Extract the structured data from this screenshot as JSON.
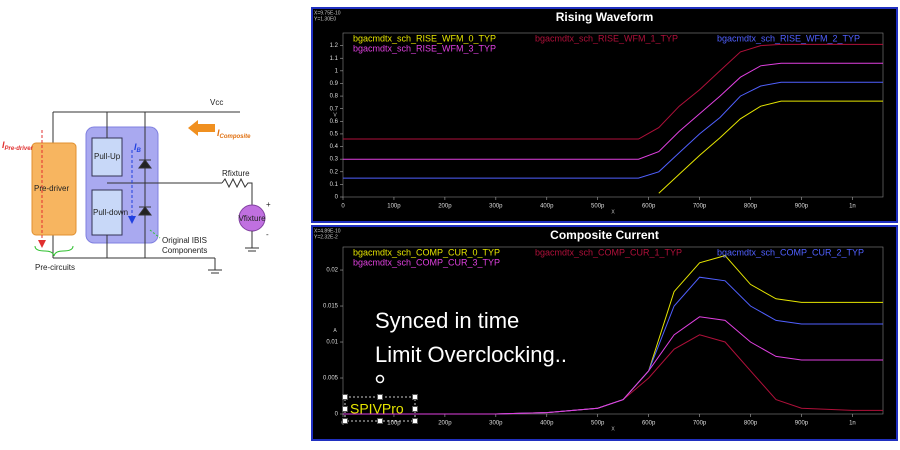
{
  "diagram": {
    "vcc": "Vcc",
    "i_composite": {
      "symbol": "I",
      "sub": "Composite"
    },
    "i_predriver": {
      "symbol": "I",
      "sub": "Pre-driver"
    },
    "i_b": {
      "symbol": "I",
      "sub": "B"
    },
    "predriver": "Pre-driver",
    "pullup": "Pull-Up",
    "pulldown": "Pull-down",
    "rfixture": "Rfixture",
    "vfixture": "Vfixture",
    "plus": "+",
    "minus": "-",
    "ibis": [
      "Original IBIS",
      "Components"
    ],
    "precircuits": "Pre-circuits"
  },
  "annotations": {
    "synced": "Synced in time",
    "overclock": "Limit Overclocking..",
    "textbox": "SPIVPro"
  },
  "chart_data": [
    {
      "type": "line",
      "title": "Rising Waveform",
      "cursor": [
        "X=9.75E-10",
        "Y=1.30E0"
      ],
      "ylabel": "V",
      "xlabel": "X",
      "x": [
        0,
        100,
        200,
        300,
        400,
        500,
        580,
        620,
        660,
        700,
        740,
        780,
        820,
        860,
        900,
        1000,
        1060
      ],
      "xlim": [
        0,
        1060
      ],
      "xticks": [
        0,
        {
          "value": 100,
          "label": "100p"
        },
        {
          "value": 200,
          "label": "200p"
        },
        {
          "value": 300,
          "label": "300p"
        },
        {
          "value": 400,
          "label": "400p"
        },
        {
          "value": 500,
          "label": "500p"
        },
        {
          "value": 600,
          "label": "600p"
        },
        {
          "value": 700,
          "label": "700p"
        },
        {
          "value": 800,
          "label": "800p"
        },
        {
          "value": 900,
          "label": "900p"
        },
        {
          "value": 1000,
          "label": "1n"
        }
      ],
      "ylim": [
        0,
        1.3
      ],
      "yticks": [
        0,
        0.1,
        0.2,
        0.3,
        0.4,
        0.5,
        0.6,
        0.7,
        0.8,
        0.9,
        1,
        1.1,
        1.2
      ],
      "series": [
        {
          "name": "bgacmdtx_sch_RISE_WFM_0_TYP",
          "color": "#e6e600",
          "values": [
            null,
            null,
            null,
            null,
            null,
            null,
            null,
            0.03,
            0.18,
            0.33,
            0.47,
            0.62,
            0.72,
            0.76,
            0.76,
            0.76,
            0.76
          ]
        },
        {
          "name": "bgacmdtx_sch_RISE_WFM_1_TYP",
          "color": "#b0103a",
          "values": [
            0.46,
            0.46,
            0.46,
            0.46,
            0.46,
            0.46,
            0.46,
            0.55,
            0.72,
            0.85,
            1.0,
            1.15,
            1.2,
            1.21,
            1.21,
            1.21,
            1.21
          ]
        },
        {
          "name": "bgacmdtx_sch_RISE_WFM_2_TYP",
          "color": "#5060ff",
          "values": [
            0.15,
            0.15,
            0.15,
            0.15,
            0.15,
            0.15,
            0.15,
            0.2,
            0.35,
            0.5,
            0.63,
            0.8,
            0.88,
            0.91,
            0.91,
            0.91,
            0.91
          ]
        },
        {
          "name": "bgacmdtx_sch_RISE_WFM_3_TYP",
          "color": "#e040e0",
          "values": [
            0.3,
            0.3,
            0.3,
            0.3,
            0.3,
            0.3,
            0.3,
            0.36,
            0.52,
            0.66,
            0.8,
            0.95,
            1.04,
            1.06,
            1.06,
            1.06,
            1.06
          ]
        }
      ]
    },
    {
      "type": "line",
      "title": "Composite Current",
      "cursor": [
        "X=4.89E-10",
        "Y=2.32E-2"
      ],
      "ylabel": "A",
      "xlabel": "X",
      "x": [
        0,
        100,
        200,
        300,
        400,
        500,
        550,
        600,
        650,
        700,
        750,
        800,
        850,
        900,
        1000,
        1060
      ],
      "xlim": [
        0,
        1060
      ],
      "xticks": [
        0,
        {
          "value": 100,
          "label": "100p"
        },
        {
          "value": 200,
          "label": "200p"
        },
        {
          "value": 300,
          "label": "300p"
        },
        {
          "value": 400,
          "label": "400p"
        },
        {
          "value": 500,
          "label": "500p"
        },
        {
          "value": 600,
          "label": "600p"
        },
        {
          "value": 700,
          "label": "700p"
        },
        {
          "value": 800,
          "label": "800p"
        },
        {
          "value": 900,
          "label": "900p"
        },
        {
          "value": 1000,
          "label": "1n"
        }
      ],
      "ylim": [
        0,
        0.0232
      ],
      "yticks": [
        0,
        0.005,
        0.01,
        0.015,
        0.02
      ],
      "series": [
        {
          "name": "bgacmdtx_sch_COMP_CUR_0_TYP",
          "color": "#e6e600",
          "values": [
            0,
            0,
            0,
            0,
            0.0002,
            0.0008,
            0.002,
            0.006,
            0.017,
            0.021,
            0.022,
            0.018,
            0.016,
            0.0155,
            0.0155,
            0.0155
          ]
        },
        {
          "name": "bgacmdtx_sch_COMP_CUR_1_TYP",
          "color": "#b0103a",
          "values": [
            0,
            0,
            0,
            0,
            0.0002,
            0.0008,
            0.002,
            0.005,
            0.009,
            0.011,
            0.01,
            0.006,
            0.002,
            0.0008,
            0.0005,
            0.0005
          ]
        },
        {
          "name": "bgacmdtx_sch_COMP_CUR_2_TYP",
          "color": "#5060ff",
          "values": [
            0,
            0,
            0,
            0,
            0.0002,
            0.0008,
            0.002,
            0.006,
            0.015,
            0.019,
            0.0185,
            0.015,
            0.013,
            0.0125,
            0.0125,
            0.0125
          ]
        },
        {
          "name": "bgacmdtx_sch_COMP_CUR_3_TYP",
          "color": "#e040e0",
          "values": [
            0,
            0,
            0,
            0,
            0.0002,
            0.0008,
            0.002,
            0.006,
            0.011,
            0.0135,
            0.013,
            0.01,
            0.008,
            0.0075,
            0.0075,
            0.0075
          ]
        }
      ]
    }
  ]
}
